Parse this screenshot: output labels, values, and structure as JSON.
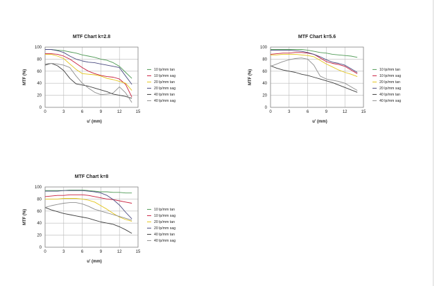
{
  "colors": {
    "series_10_tan": "#4f9a55",
    "series_10_sag": "#c81e3c",
    "series_20_tan": "#e3c51a",
    "series_20_sag": "#4b4b80",
    "series_40_tan": "#3c3c3c",
    "series_40_sag": "#8e8e8e",
    "grid": "#b8b8b8",
    "text": "#222222"
  },
  "chart_data": [
    {
      "type": "line",
      "title": "MTF Chart k=2.8",
      "xlabel": "u' (mm)",
      "ylabel": "MTF (%)",
      "xlim": [
        0,
        15
      ],
      "ylim": [
        0,
        100
      ],
      "xticks": [
        0,
        3,
        6,
        9,
        12,
        15
      ],
      "yticks": [
        0,
        20,
        40,
        60,
        80,
        100
      ],
      "legend_position": "right",
      "series": [
        {
          "name": "10 lp/mm tan",
          "color_key": "series_10_tan",
          "x": [
            0,
            1,
            2,
            3,
            4,
            5,
            6,
            7,
            8,
            9,
            10,
            11,
            12,
            13,
            14
          ],
          "y": [
            96,
            96,
            95,
            94,
            92,
            90,
            87,
            85,
            83,
            80,
            78,
            74,
            68,
            58,
            48
          ]
        },
        {
          "name": "10 lp/mm sag",
          "color_key": "series_10_sag",
          "x": [
            0,
            1,
            2,
            3,
            4,
            5,
            6,
            7,
            8,
            9,
            10,
            11,
            12,
            13,
            14
          ],
          "y": [
            89,
            89,
            88,
            85,
            80,
            73,
            66,
            60,
            56,
            53,
            51,
            50,
            47,
            38,
            17
          ]
        },
        {
          "name": "20 lp/mm tan",
          "color_key": "series_20_tan",
          "x": [
            0,
            1,
            2,
            3,
            4,
            5,
            6,
            7,
            8,
            9,
            10,
            11,
            12,
            13,
            14
          ],
          "y": [
            88,
            88,
            85,
            81,
            72,
            63,
            56,
            55,
            54,
            52,
            48,
            46,
            43,
            40,
            28
          ]
        },
        {
          "name": "20 lp/mm sag",
          "color_key": "series_20_sag",
          "x": [
            0,
            1,
            2,
            3,
            4,
            5,
            6,
            7,
            8,
            9,
            10,
            11,
            12,
            13,
            14
          ],
          "y": [
            96,
            96,
            94,
            91,
            85,
            80,
            77,
            75,
            74,
            72,
            70,
            68,
            66,
            52,
            38
          ]
        },
        {
          "name": "40 lp/mm tan",
          "color_key": "series_40_tan",
          "x": [
            0,
            1,
            2,
            3,
            4,
            5,
            6,
            7,
            8,
            9,
            10,
            11,
            12,
            13,
            14
          ],
          "y": [
            70,
            73,
            69,
            61,
            48,
            39,
            37,
            35,
            32,
            29,
            26,
            22,
            20,
            18,
            15
          ]
        },
        {
          "name": "40 lp/mm sag",
          "color_key": "series_40_sag",
          "x": [
            0,
            1,
            2,
            3,
            4,
            5,
            6,
            7,
            8,
            9,
            10,
            11,
            12,
            13,
            14
          ],
          "y": [
            72,
            73,
            72,
            70,
            66,
            52,
            40,
            32,
            25,
            21,
            22,
            24,
            34,
            24,
            8
          ]
        }
      ]
    },
    {
      "type": "line",
      "title": "MTF Chart k=5.6",
      "xlabel": "u' (mm)",
      "ylabel": "MTF (%)",
      "xlim": [
        0,
        15
      ],
      "ylim": [
        0,
        100
      ],
      "xticks": [
        0,
        3,
        6,
        9,
        12,
        15
      ],
      "yticks": [
        0,
        20,
        40,
        60,
        80,
        100
      ],
      "legend_position": "right",
      "series": [
        {
          "name": "10 lp/mm tan",
          "color_key": "series_10_tan",
          "x": [
            0,
            1,
            2,
            3,
            4,
            5,
            6,
            7,
            8,
            9,
            10,
            11,
            12,
            13,
            14
          ],
          "y": [
            96,
            96,
            96,
            96,
            96,
            96,
            95,
            93,
            91,
            90,
            88,
            87,
            86,
            85,
            83
          ]
        },
        {
          "name": "10 lp/mm sag",
          "color_key": "series_10_sag",
          "x": [
            0,
            1,
            2,
            3,
            4,
            5,
            6,
            7,
            8,
            9,
            10,
            11,
            12,
            13,
            14
          ],
          "y": [
            88,
            89,
            90,
            90,
            91,
            91,
            90,
            88,
            82,
            76,
            73,
            71,
            68,
            62,
            56
          ]
        },
        {
          "name": "20 lp/mm tan",
          "color_key": "series_20_tan",
          "x": [
            0,
            1,
            2,
            3,
            4,
            5,
            6,
            7,
            8,
            9,
            10,
            11,
            12,
            13,
            14
          ],
          "y": [
            87,
            87,
            88,
            88,
            88,
            87,
            86,
            84,
            78,
            72,
            67,
            62,
            58,
            55,
            51
          ]
        },
        {
          "name": "20 lp/mm sag",
          "color_key": "series_20_sag",
          "x": [
            0,
            1,
            2,
            3,
            4,
            5,
            6,
            7,
            8,
            9,
            10,
            11,
            12,
            13,
            14
          ],
          "y": [
            95,
            95,
            95,
            95,
            94,
            93,
            91,
            88,
            84,
            79,
            75,
            73,
            70,
            64,
            58
          ]
        },
        {
          "name": "40 lp/mm tan",
          "color_key": "series_40_tan",
          "x": [
            0,
            1,
            2,
            3,
            4,
            5,
            6,
            7,
            8,
            9,
            10,
            11,
            12,
            13,
            14
          ],
          "y": [
            69,
            65,
            62,
            60,
            58,
            55,
            53,
            50,
            47,
            44,
            41,
            37,
            33,
            29,
            25
          ]
        },
        {
          "name": "40 lp/mm sag",
          "color_key": "series_40_sag",
          "x": [
            0,
            1,
            2,
            3,
            4,
            5,
            6,
            7,
            8,
            9,
            10,
            11,
            12,
            13,
            14
          ],
          "y": [
            68,
            72,
            76,
            79,
            81,
            82,
            80,
            70,
            52,
            47,
            45,
            43,
            40,
            34,
            28
          ]
        }
      ]
    },
    {
      "type": "line",
      "title": "MTF Chart k=8",
      "xlabel": "u' (mm)",
      "ylabel": "MTF (%)",
      "xlim": [
        0,
        15
      ],
      "ylim": [
        0,
        100
      ],
      "xticks": [
        0,
        3,
        6,
        9,
        12,
        15
      ],
      "yticks": [
        0,
        20,
        40,
        60,
        80,
        100
      ],
      "legend_position": "right",
      "series": [
        {
          "name": "10 lp/mm tan",
          "color_key": "series_10_tan",
          "x": [
            0,
            1,
            2,
            3,
            4,
            5,
            6,
            7,
            8,
            9,
            10,
            11,
            12,
            13,
            14
          ],
          "y": [
            94,
            94,
            94,
            94,
            95,
            95,
            95,
            94,
            93,
            92,
            92,
            91,
            91,
            90,
            90
          ]
        },
        {
          "name": "10 lp/mm sag",
          "color_key": "series_10_sag",
          "x": [
            0,
            1,
            2,
            3,
            4,
            5,
            6,
            7,
            8,
            9,
            10,
            11,
            12,
            13,
            14
          ],
          "y": [
            84,
            85,
            86,
            86,
            87,
            87,
            87,
            86,
            84,
            82,
            80,
            79,
            77,
            75,
            73
          ]
        },
        {
          "name": "20 lp/mm tan",
          "color_key": "series_20_tan",
          "x": [
            0,
            1,
            2,
            3,
            4,
            5,
            6,
            7,
            8,
            9,
            10,
            11,
            12,
            13,
            14
          ],
          "y": [
            80,
            80,
            80,
            81,
            81,
            81,
            80,
            78,
            75,
            69,
            63,
            56,
            50,
            46,
            43
          ]
        },
        {
          "name": "20 lp/mm sag",
          "color_key": "series_20_sag",
          "x": [
            0,
            1,
            2,
            3,
            4,
            5,
            6,
            7,
            8,
            9,
            10,
            11,
            12,
            13,
            14
          ],
          "y": [
            93,
            93,
            93,
            94,
            94,
            94,
            94,
            93,
            92,
            90,
            86,
            79,
            70,
            58,
            47
          ]
        },
        {
          "name": "40 lp/mm tan",
          "color_key": "series_40_tan",
          "x": [
            0,
            1,
            2,
            3,
            4,
            5,
            6,
            7,
            8,
            9,
            10,
            11,
            12,
            13,
            14
          ],
          "y": [
            66,
            62,
            59,
            56,
            54,
            52,
            50,
            48,
            45,
            42,
            40,
            38,
            34,
            29,
            23
          ]
        },
        {
          "name": "40 lp/mm sag",
          "color_key": "series_40_sag",
          "x": [
            0,
            1,
            2,
            3,
            4,
            5,
            6,
            7,
            8,
            9,
            10,
            11,
            12,
            13,
            14
          ],
          "y": [
            66,
            69,
            71,
            73,
            74,
            74,
            72,
            68,
            63,
            60,
            57,
            54,
            51,
            48,
            45
          ]
        }
      ]
    }
  ]
}
